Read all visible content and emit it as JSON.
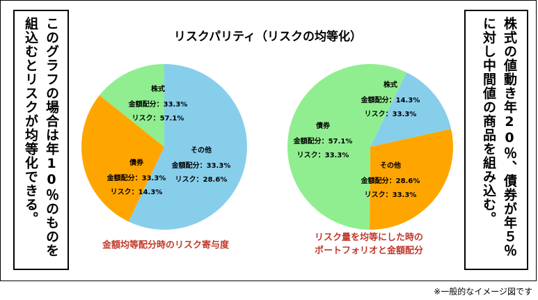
{
  "left_note": "このグラフの場合は年10％のものを組込むとリスクが均等化できる。",
  "right_note": "株式の値動き年20％、債券が年５％に対し中間値の商品を組み込む。",
  "title": "リスクパリティ（リスクの均等化）",
  "footnote": "※一般的なイメージ図です",
  "colors": {
    "stock": "#87CEEB",
    "bond": "#90EE90",
    "other": "#FFA500",
    "caption": "#c0392b"
  },
  "chart_data": [
    {
      "type": "pie",
      "caption": "金額均等配分時のリスク寄与度",
      "slices": [
        {
          "name": "株式",
          "value": 57.1,
          "color": "#87CEEB",
          "line1": "金額配分：33.3%",
          "line2": "リスク：57.1%"
        },
        {
          "name": "その他",
          "value": 28.6,
          "color": "#FFA500",
          "line1": "金額配分：33.3%",
          "line2": "リスク：28.6%"
        },
        {
          "name": "債券",
          "value": 14.3,
          "color": "#90EE90",
          "line1": "金額配分：33.3%",
          "line2": "リスク：14.3%"
        }
      ]
    },
    {
      "type": "pie",
      "caption": "リスク量を均等にした時の\nポートフォリオと金額配分",
      "slices": [
        {
          "name": "株式",
          "value": 14.3,
          "color": "#87CEEB",
          "line1": "金額配分：14.3%",
          "line2": "リスク：33.3%"
        },
        {
          "name": "その他",
          "value": 28.6,
          "color": "#FFA500",
          "line1": "金額配分：28.6%",
          "line2": "リスク：33.3%"
        },
        {
          "name": "債券",
          "value": 57.1,
          "color": "#90EE90",
          "line1": "金額配分：57.1%",
          "line2": "リスク：33.3%"
        }
      ]
    }
  ]
}
